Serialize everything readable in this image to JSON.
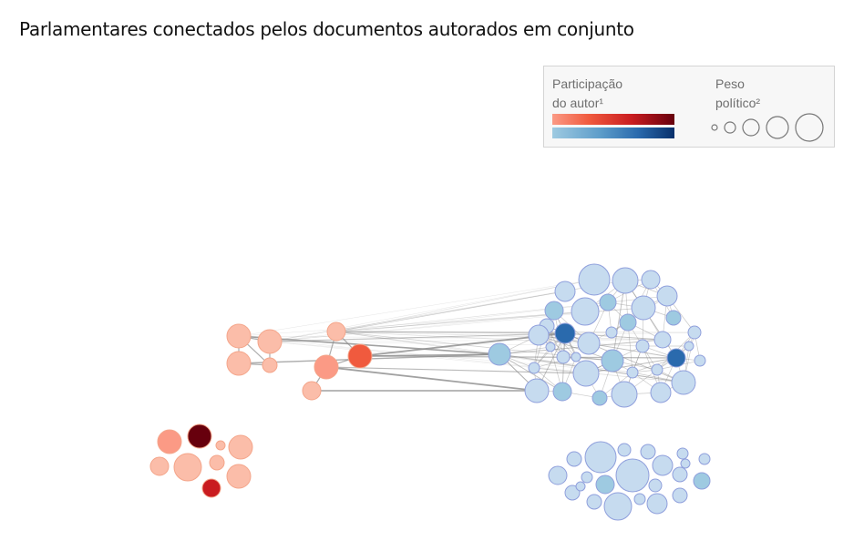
{
  "title": "Parlamentares conectados pelos documentos autorados em conjunto",
  "legend": {
    "participation_label_line1": "Participação",
    "participation_label_line2": "do autor¹",
    "weight_label_line1": "Peso",
    "weight_label_line2": "político²",
    "size_steps": 5
  },
  "colors": {
    "red_scale": [
      "#fbbda9",
      "#fb9a85",
      "#f05a3e",
      "#c91c20",
      "#67000d"
    ],
    "blue_scale": [
      "#c6dbef",
      "#9ecae1",
      "#5c9cc9",
      "#2a6aad",
      "#08306b"
    ],
    "node_stroke_red": "#f4a58a",
    "node_stroke_blue": "#8f9fdc",
    "edge": "#8a8a8a"
  },
  "network": {
    "clusters": [
      {
        "id": "red-connected",
        "color": "red",
        "nodes": [
          {
            "id": "r1",
            "level": 1,
            "weight": 3
          },
          {
            "id": "r2",
            "level": 1,
            "weight": 3
          },
          {
            "id": "r3",
            "level": 1,
            "weight": 3
          },
          {
            "id": "r4",
            "level": 1,
            "weight": 1
          },
          {
            "id": "r5",
            "level": 1,
            "weight": 2
          },
          {
            "id": "r6",
            "level": 3,
            "weight": 3
          },
          {
            "id": "r7",
            "level": 2,
            "weight": 3
          },
          {
            "id": "r8",
            "level": 1,
            "weight": 2
          }
        ]
      },
      {
        "id": "blue-connected",
        "color": "blue",
        "nodes_count": 44
      },
      {
        "id": "red-isolated",
        "color": "red",
        "nodes": [
          {
            "id": "ri1",
            "level": 2,
            "weight": 3
          },
          {
            "id": "ri2",
            "level": 5,
            "weight": 3
          },
          {
            "id": "ri3",
            "level": 1,
            "weight": 0
          },
          {
            "id": "ri4",
            "level": 1,
            "weight": 3
          },
          {
            "id": "ri5",
            "level": 1,
            "weight": 2
          },
          {
            "id": "ri6",
            "level": 1,
            "weight": 4
          },
          {
            "id": "ri7",
            "level": 1,
            "weight": 1
          },
          {
            "id": "ri8",
            "level": 1,
            "weight": 3
          },
          {
            "id": "ri9",
            "level": 4,
            "weight": 2
          }
        ]
      },
      {
        "id": "blue-isolated",
        "color": "blue",
        "nodes_count": 22
      }
    ]
  }
}
